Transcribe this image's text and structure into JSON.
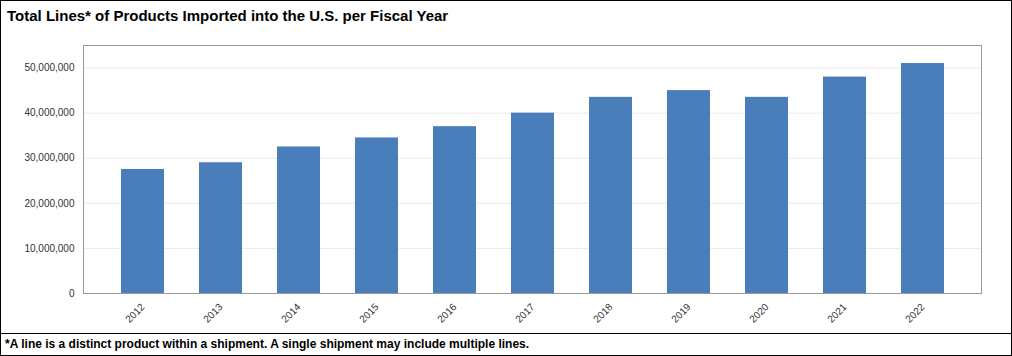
{
  "chart_data": {
    "type": "bar",
    "title": "Total Lines* of Products Imported into the U.S. per Fiscal Year",
    "caption": "*A line is a distinct product within a shipment. A single shipment may include multiple lines.",
    "categories": [
      "2012",
      "2013",
      "2014",
      "2015",
      "2016",
      "2017",
      "2018",
      "2019",
      "2020",
      "2021",
      "2022"
    ],
    "values": [
      27500000,
      29000000,
      32500000,
      34500000,
      37000000,
      40000000,
      43500000,
      45000000,
      43500000,
      48000000,
      51000000
    ],
    "color": "#4a7ebb",
    "ylim": [
      0,
      55000000
    ],
    "yticks": [
      0,
      {
        "value": 10000000,
        "label": "10,000,000"
      },
      {
        "value": 20000000,
        "label": "20,000,000"
      },
      {
        "value": 30000000,
        "label": "30,000,000"
      },
      {
        "value": 40000000,
        "label": "40,000,000"
      },
      {
        "value": 50000000,
        "label": "50,000,000"
      }
    ],
    "grid": true
  }
}
